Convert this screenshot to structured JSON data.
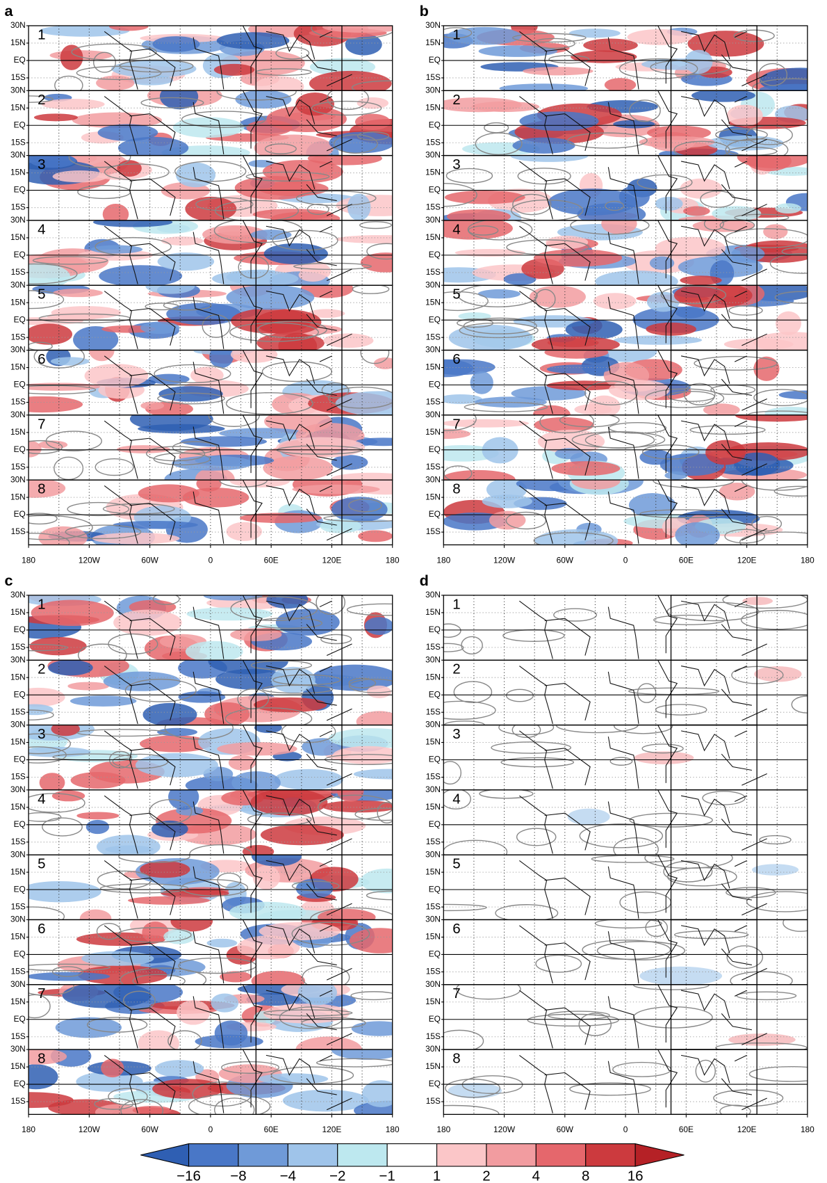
{
  "panels": [
    {
      "label": "a",
      "strips": [
        "1",
        "2",
        "3",
        "4",
        "5",
        "6",
        "7",
        "8"
      ]
    },
    {
      "label": "b",
      "strips": [
        "1",
        "2",
        "3",
        "4",
        "5",
        "6",
        "7",
        "8"
      ]
    },
    {
      "label": "c",
      "strips": [
        "1",
        "2",
        "3",
        "4",
        "5",
        "6",
        "7",
        "8"
      ]
    },
    {
      "label": "d",
      "strips": [
        "1",
        "2",
        "3",
        "4",
        "5",
        "6",
        "7",
        "8"
      ]
    }
  ],
  "lat_labels": [
    "30N",
    "15N",
    "EQ",
    "15S"
  ],
  "lon_labels": [
    "180",
    "120W",
    "60W",
    "0",
    "60E",
    "120E",
    "180"
  ],
  "colorbar": {
    "labels": [
      "−16",
      "−8",
      "−4",
      "−2",
      "−1",
      "1",
      "2",
      "4",
      "8",
      "16"
    ],
    "colors": [
      "#2f5fb3",
      "#4977c7",
      "#6f9ad8",
      "#9fc4ea",
      "#bde8ef",
      "#ffffff",
      "#fbc6c8",
      "#f29ca0",
      "#e5676c",
      "#cc3a3e",
      "#b52126"
    ]
  }
}
